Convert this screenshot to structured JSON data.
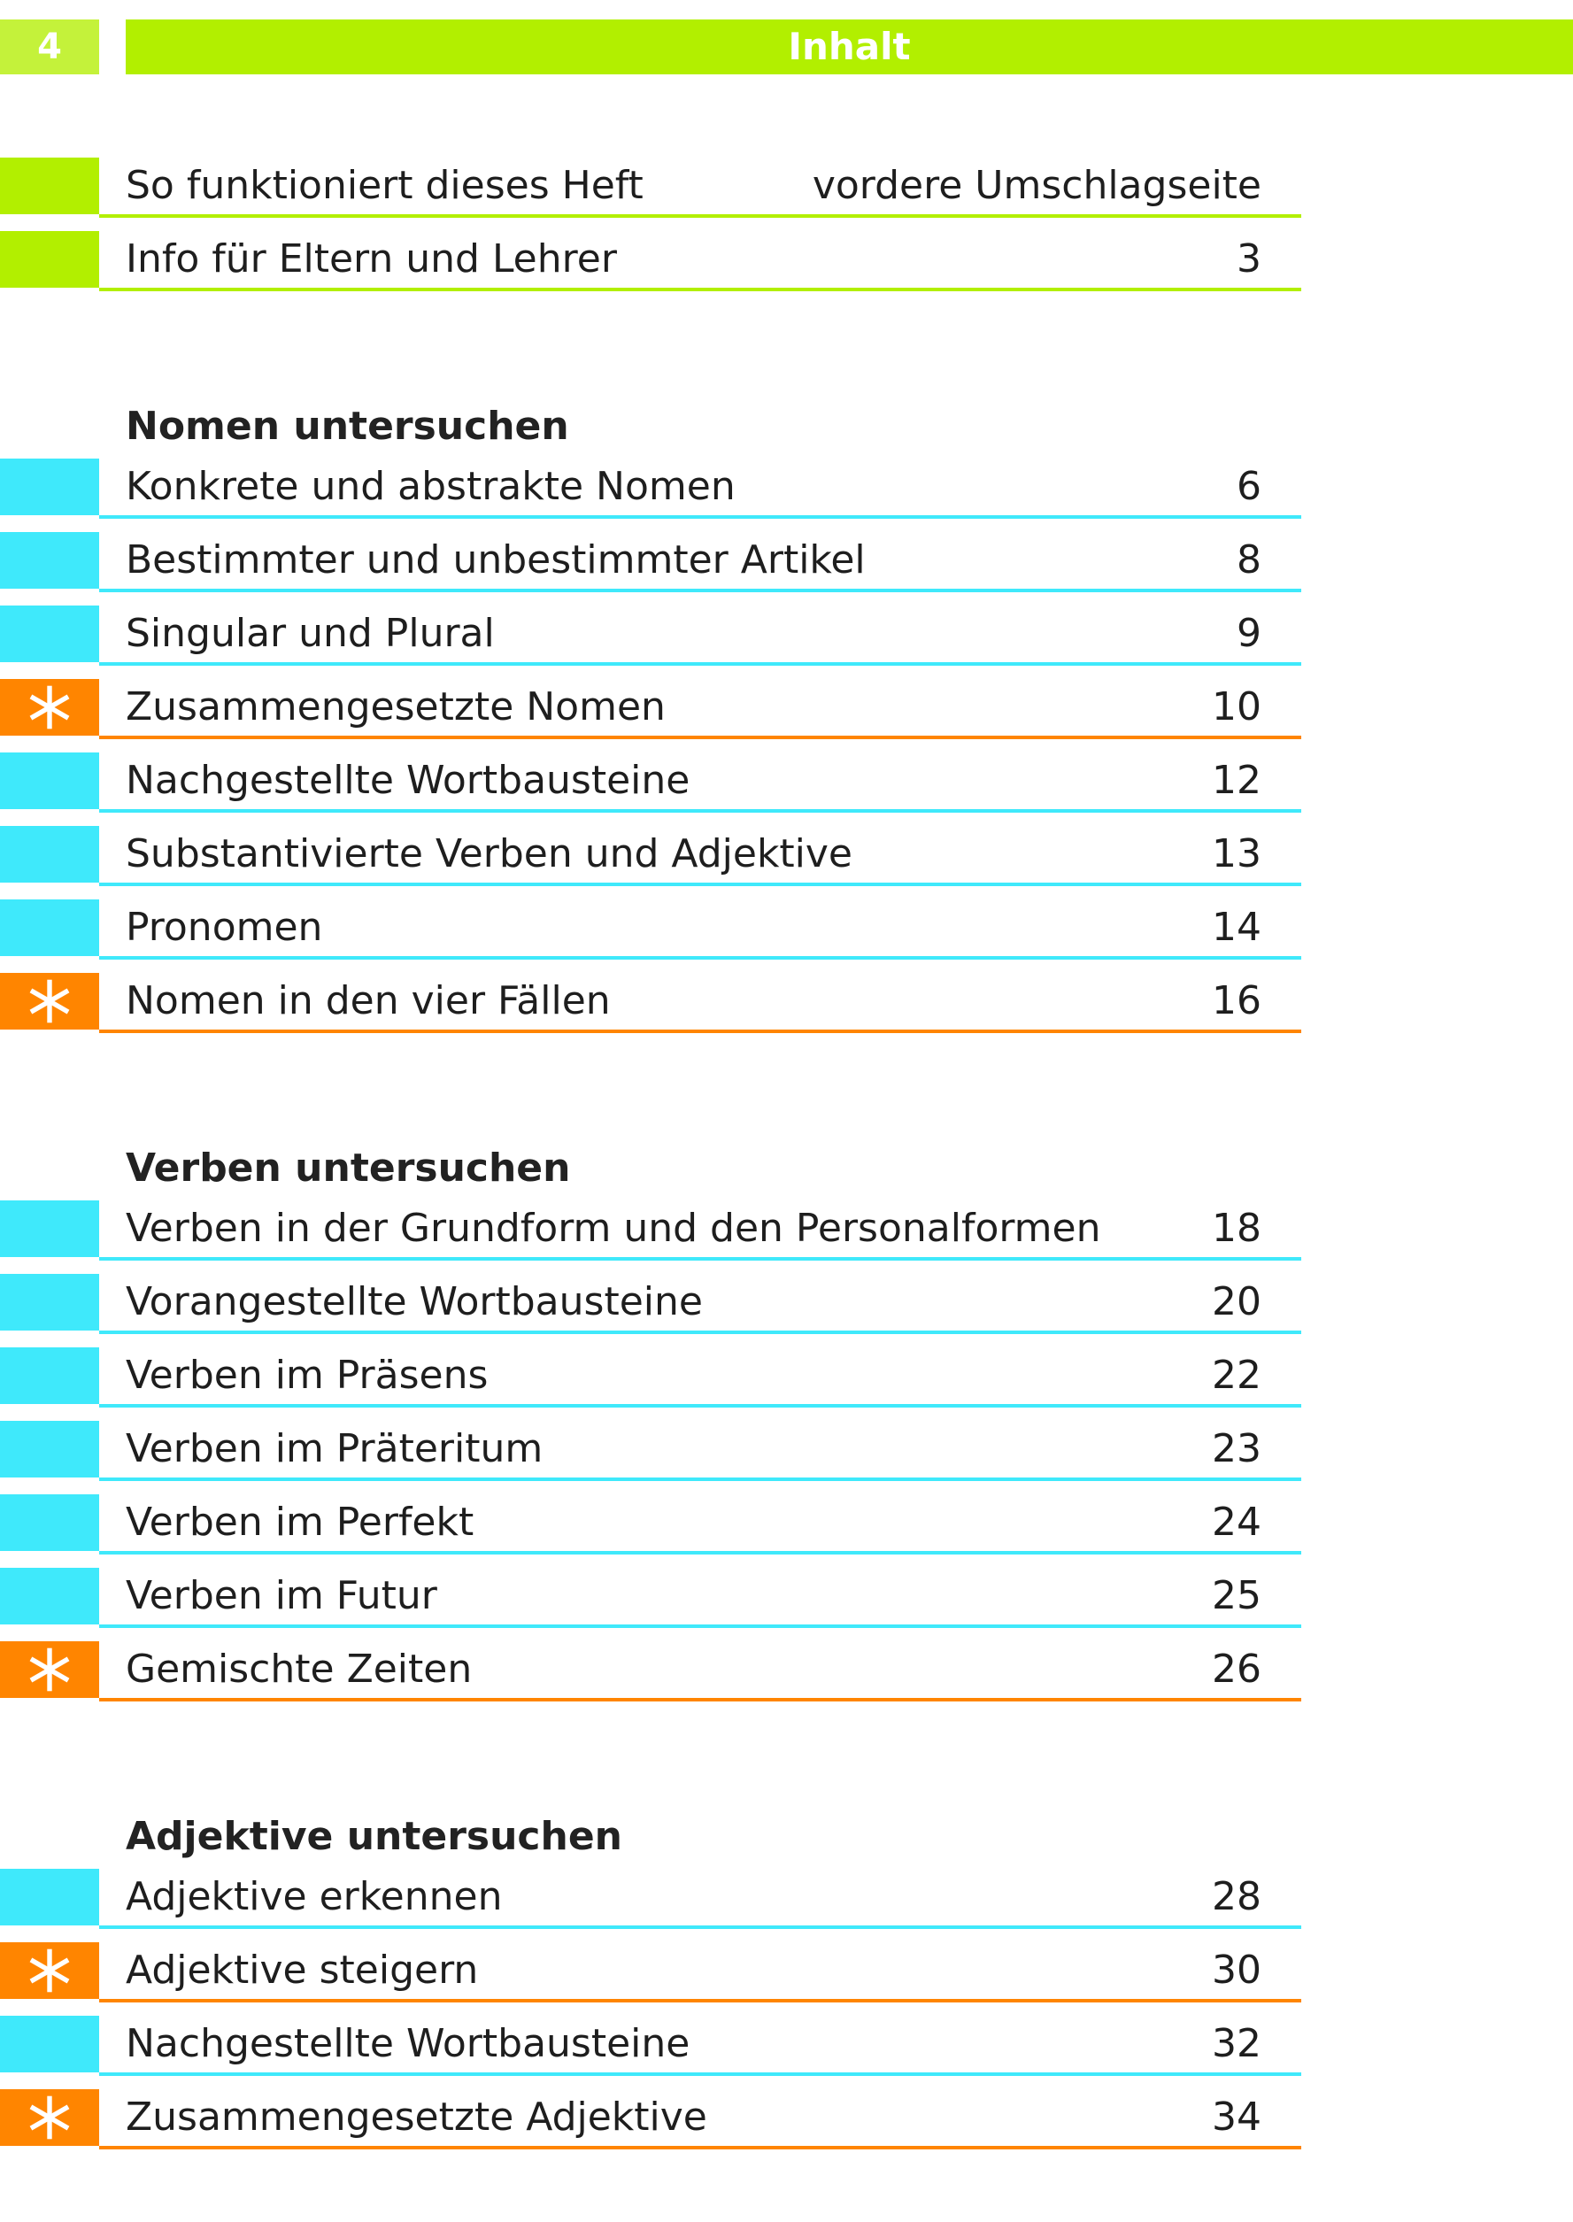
{
  "header": {
    "page_number": "4",
    "title": "Inhalt"
  },
  "intro": [
    {
      "title": "So funktioniert dieses Heft",
      "page": "vordere Umschlagseite"
    },
    {
      "title": "Info für Eltern und Lehrer",
      "page": "3"
    }
  ],
  "sections": [
    {
      "heading": "Nomen untersuchen",
      "entries": [
        {
          "title": "Konkrete und abstrakte Nomen",
          "page": "6",
          "marker": "plain"
        },
        {
          "title": "Bestimmter und unbestimmter Artikel",
          "page": "8",
          "marker": "plain"
        },
        {
          "title": "Singular und Plural",
          "page": "9",
          "marker": "plain"
        },
        {
          "title": "Zusammengesetzte Nomen",
          "page": "10",
          "marker": "star"
        },
        {
          "title": "Nachgestellte Wortbausteine",
          "page": "12",
          "marker": "plain"
        },
        {
          "title": "Substantivierte Verben und Adjektive",
          "page": "13",
          "marker": "plain"
        },
        {
          "title": "Pronomen",
          "page": "14",
          "marker": "plain"
        },
        {
          "title": "Nomen in den vier Fällen",
          "page": "16",
          "marker": "star"
        }
      ]
    },
    {
      "heading": "Verben untersuchen",
      "entries": [
        {
          "title": "Verben in der Grundform und den Personalformen",
          "page": "18",
          "marker": "plain"
        },
        {
          "title": "Vorangestellte Wortbausteine",
          "page": "20",
          "marker": "plain"
        },
        {
          "title": "Verben im Präsens",
          "page": "22",
          "marker": "plain"
        },
        {
          "title": "Verben im Präteritum",
          "page": "23",
          "marker": "plain"
        },
        {
          "title": "Verben im Perfekt",
          "page": "24",
          "marker": "plain"
        },
        {
          "title": "Verben im Futur",
          "page": "25",
          "marker": "plain"
        },
        {
          "title": "Gemischte Zeiten",
          "page": "26",
          "marker": "star"
        }
      ]
    },
    {
      "heading": "Adjektive untersuchen",
      "entries": [
        {
          "title": "Adjektive erkennen",
          "page": "28",
          "marker": "plain"
        },
        {
          "title": "Adjektive steigern",
          "page": "30",
          "marker": "star"
        },
        {
          "title": "Nachgestellte Wortbausteine",
          "page": "32",
          "marker": "plain"
        },
        {
          "title": "Zusammengesetzte Adjektive",
          "page": "34",
          "marker": "star"
        }
      ]
    }
  ],
  "colors": {
    "header_green": "#b2ef00",
    "page_number_green": "#c4f23a",
    "cyan": "#3fe9fb",
    "orange": "#ff8500",
    "text": "#1e1e1e"
  },
  "icons": {
    "star_marker": "star-icon"
  }
}
